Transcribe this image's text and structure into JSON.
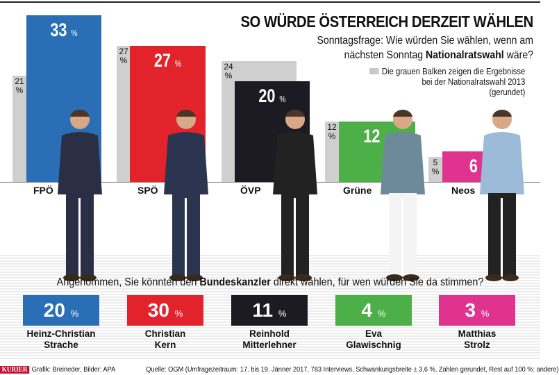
{
  "header": {
    "title": "SO WÜRDE ÖSTERREICH DERZEIT WÄHLEN",
    "subtitle_line1": "Sonntagsfrage: Wie würden Sie wählen, wenn am",
    "subtitle_line2_pre": "nächsten Sonntag ",
    "subtitle_line2_bold": "Nationalratswahl",
    "subtitle_line2_post": " wäre?"
  },
  "legend": {
    "line1": "Die grauen Balken zeigen die Ergebnisse",
    "line2": "bei der Nationalratswahl 2013",
    "line3": "(gerundet)"
  },
  "chart_data": [
    {
      "type": "bar",
      "title": "SO WÜRDE ÖSTERREICH DERZEIT WÄHLEN",
      "categories": [
        "FPÖ",
        "SPÖ",
        "ÖVP",
        "Grüne",
        "Neos"
      ],
      "series": [
        {
          "name": "2013",
          "values": [
            21,
            27,
            24,
            12,
            5
          ],
          "color": "#cfcfcf"
        },
        {
          "name": "Sonntagsfrage",
          "values": [
            33,
            27,
            20,
            12,
            6
          ]
        }
      ],
      "colors": [
        "#2a6fb5",
        "#e3232b",
        "#1c1a22",
        "#4caf47",
        "#e0338f"
      ],
      "unit": "%"
    },
    {
      "type": "table",
      "title": "Angenommen, Sie könnten den Bundeskanzler direkt wählen, für wen würden Sie da stimmen?",
      "candidates": [
        {
          "line1": "Heinz-Christian",
          "line2": "Strache",
          "value": 20
        },
        {
          "line1": "Christian",
          "line2": "Kern",
          "value": 30
        },
        {
          "line1": "Reinhold",
          "line2": "Mitterlehner",
          "value": 11
        },
        {
          "line1": "Eva",
          "line2": "Glawischnig",
          "value": 4
        },
        {
          "line1": "Matthias",
          "line2": "Strolz",
          "value": 3
        }
      ],
      "unit": "%"
    }
  ],
  "question": {
    "pre": "Angenommen, Sie könnten den ",
    "bold": "Bundeskanzler",
    "post": " direkt wählen, für wen würden Sie da stimmen?"
  },
  "footer": {
    "brand": "KURIER",
    "credit": "Grafik: Breineder, Bilder: APA",
    "source": "Quelle: OGM (Umfragezeitraum: 17. bis 19. Jänner 2017, 783 Interviews, Schwankungsbreite ± 3,6 %, Zahlen gerundet, Rest auf 100 %: andere)"
  }
}
